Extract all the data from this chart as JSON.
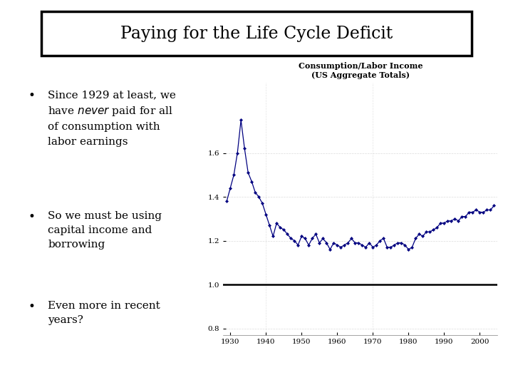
{
  "title": "Paying for the Life Cycle Deficit",
  "chart_title_line1": "Consumption/Labor Income",
  "chart_title_line2": "(US Aggregate Totals)",
  "xlim": [
    1928,
    2005
  ],
  "ylim": [
    0.77,
    1.92
  ],
  "yticks": [
    0.8,
    1.0,
    1.2,
    1.4,
    1.6
  ],
  "xticks": [
    1930,
    1940,
    1950,
    1960,
    1970,
    1980,
    1990,
    2000
  ],
  "line_color": "#000080",
  "hline_y": 1.0,
  "background_color": "#ffffff",
  "years": [
    1929,
    1930,
    1931,
    1932,
    1933,
    1934,
    1935,
    1936,
    1937,
    1938,
    1939,
    1940,
    1941,
    1942,
    1943,
    1944,
    1945,
    1946,
    1947,
    1948,
    1949,
    1950,
    1951,
    1952,
    1953,
    1954,
    1955,
    1956,
    1957,
    1958,
    1959,
    1960,
    1961,
    1962,
    1963,
    1964,
    1965,
    1966,
    1967,
    1968,
    1969,
    1970,
    1971,
    1972,
    1973,
    1974,
    1975,
    1976,
    1977,
    1978,
    1979,
    1980,
    1981,
    1982,
    1983,
    1984,
    1985,
    1986,
    1987,
    1988,
    1989,
    1990,
    1991,
    1992,
    1993,
    1994,
    1995,
    1996,
    1997,
    1998,
    1999,
    2000,
    2001,
    2002,
    2003,
    2004
  ],
  "values": [
    1.38,
    1.44,
    1.5,
    1.6,
    1.75,
    1.62,
    1.51,
    1.47,
    1.42,
    1.4,
    1.37,
    1.32,
    1.27,
    1.22,
    1.28,
    1.26,
    1.25,
    1.23,
    1.21,
    1.2,
    1.18,
    1.22,
    1.21,
    1.18,
    1.21,
    1.23,
    1.19,
    1.21,
    1.19,
    1.16,
    1.19,
    1.18,
    1.17,
    1.18,
    1.19,
    1.21,
    1.19,
    1.19,
    1.18,
    1.17,
    1.19,
    1.17,
    1.18,
    1.2,
    1.21,
    1.17,
    1.17,
    1.18,
    1.19,
    1.19,
    1.18,
    1.16,
    1.17,
    1.21,
    1.23,
    1.22,
    1.24,
    1.24,
    1.25,
    1.26,
    1.28,
    1.28,
    1.29,
    1.29,
    1.3,
    1.29,
    1.31,
    1.31,
    1.33,
    1.33,
    1.34,
    1.33,
    1.33,
    1.34,
    1.34,
    1.36
  ]
}
